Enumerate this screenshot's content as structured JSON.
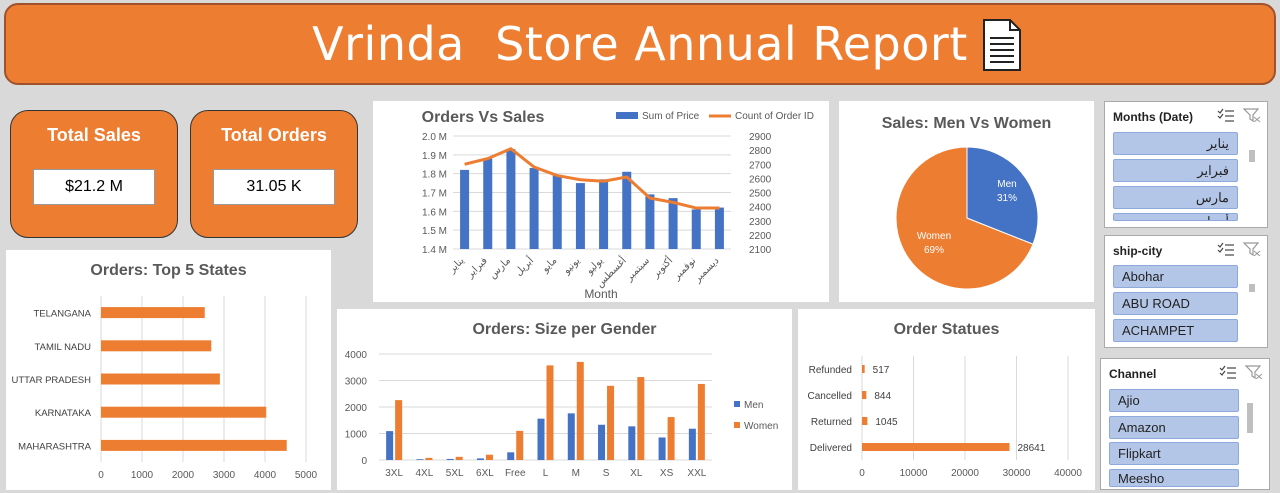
{
  "header": {
    "title": "Vrinda  Store Annual Report",
    "icon": "document-icon"
  },
  "kpis": {
    "total_sales": {
      "label": "Total Sales",
      "value": "$21.2 M"
    },
    "total_orders": {
      "label": "Total Orders",
      "value": "31.05 K"
    }
  },
  "colors": {
    "orange": "#ED7D31",
    "blue": "#4472C4"
  },
  "charts": {
    "orders_vs_sales": {
      "title": "Orders Vs Sales",
      "legend": [
        "Sum of Price",
        "Count of Order ID"
      ],
      "xlabel": "Month",
      "y_ticks": [
        "1.4 M",
        "1.5 M",
        "1.6 M",
        "1.7 M",
        "1.8 M",
        "1.9 M",
        "2.0 M"
      ],
      "y2_ticks": [
        "2100",
        "2200",
        "2300",
        "2400",
        "2500",
        "2600",
        "2700",
        "2800",
        "2900"
      ]
    },
    "men_vs_women": {
      "title": "Sales: Men Vs Women",
      "men_label": "Men",
      "men_pct": "31%",
      "women_label": "Women",
      "women_pct": "69%"
    },
    "top_states": {
      "title": "Orders: Top 5 States",
      "x_ticks": [
        "0",
        "1000",
        "2000",
        "3000",
        "4000",
        "5000"
      ]
    },
    "size_gender": {
      "title": "Orders: Size per Gender",
      "y_ticks": [
        "0",
        "1000",
        "2000",
        "3000",
        "4000"
      ],
      "legend": [
        "Men",
        "Women"
      ]
    },
    "order_status": {
      "title": "Order Statues",
      "x_ticks": [
        "0",
        "10000",
        "20000",
        "30000",
        "40000"
      ]
    }
  },
  "chart_data": [
    {
      "type": "bar",
      "title": "Orders Vs Sales",
      "xlabel": "Month",
      "categories": [
        "يناير",
        "فبراير",
        "مارس",
        "أبريل",
        "مايو",
        "يونيو",
        "يوليو",
        "أغسطس",
        "سبتمبر",
        "أكتوبر",
        "نوفمبر",
        "ديسمبر"
      ],
      "series": [
        {
          "name": "Sum of Price",
          "type": "bar",
          "axis": "left",
          "values": [
            1.82,
            1.88,
            1.93,
            1.83,
            1.79,
            1.75,
            1.77,
            1.81,
            1.69,
            1.67,
            1.61,
            1.62
          ]
        },
        {
          "name": "Count of Order ID",
          "type": "line",
          "axis": "right",
          "values": [
            2700,
            2740,
            2810,
            2680,
            2620,
            2590,
            2580,
            2610,
            2460,
            2430,
            2390,
            2390
          ]
        }
      ],
      "ylim": [
        1.4,
        2.0
      ],
      "y2lim": [
        2100,
        2900
      ],
      "legend": "top-right"
    },
    {
      "type": "pie",
      "title": "Sales: Men Vs Women",
      "categories": [
        "Men",
        "Women"
      ],
      "values": [
        31,
        69
      ]
    },
    {
      "type": "bar",
      "orientation": "horizontal",
      "title": "Orders: Top 5 States",
      "categories": [
        "TELANGANA",
        "TAMIL NADU",
        "UTTAR PRADESH",
        "KARNATAKA",
        "MAHARASHTRA"
      ],
      "values": [
        2530,
        2690,
        2900,
        4030,
        4530
      ],
      "xlim": [
        0,
        5000
      ]
    },
    {
      "type": "bar",
      "title": "Orders: Size per Gender",
      "categories": [
        "3XL",
        "4XL",
        "5XL",
        "6XL",
        "Free",
        "L",
        "M",
        "S",
        "XL",
        "XS",
        "XXL"
      ],
      "series": [
        {
          "name": "Men",
          "values": [
            1090,
            30,
            40,
            60,
            290,
            1560,
            1760,
            1330,
            1270,
            850,
            1180
          ]
        },
        {
          "name": "Women",
          "values": [
            2260,
            80,
            120,
            200,
            1100,
            3570,
            3700,
            2800,
            3130,
            1620,
            2870
          ]
        }
      ],
      "ylim": [
        0,
        4000
      ],
      "legend": "right"
    },
    {
      "type": "bar",
      "orientation": "horizontal",
      "title": "Order Statues",
      "categories": [
        "Refunded",
        "Cancelled",
        "Returned",
        "Delivered"
      ],
      "values": [
        517,
        844,
        1045,
        28641
      ],
      "xlim": [
        0,
        40000
      ]
    }
  ],
  "slicers": [
    {
      "header": "Months (Date)",
      "items": [
        "يناير",
        "فبراير",
        "مارس",
        "أبريل"
      ]
    },
    {
      "header": "ship-city",
      "items": [
        "Abohar",
        "ABU ROAD",
        "ACHAMPET"
      ]
    },
    {
      "header": "Channel",
      "items": [
        "Ajio",
        "Amazon",
        "Flipkart",
        "Meesho"
      ]
    }
  ]
}
